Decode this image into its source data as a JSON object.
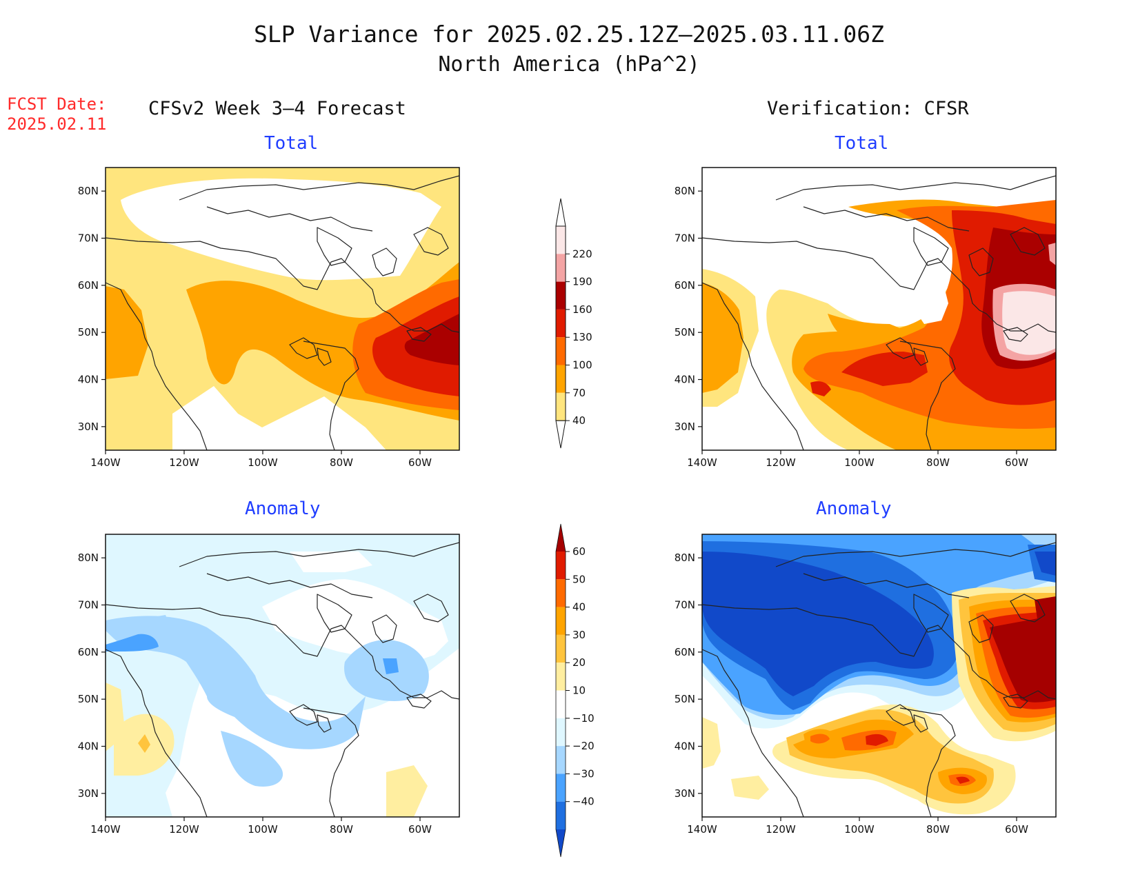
{
  "header": {
    "title": "SLP Variance for 2025.02.25.12Z–2025.03.11.06Z",
    "subtitle": "North America (hPa^2)",
    "fcst_date_label": "FCST Date:",
    "fcst_date_value": "2025.02.11",
    "left_column_title": "CFSv2 Week 3–4 Forecast",
    "right_column_title": "Verification: CFSR"
  },
  "panels": {
    "fcst_total": {
      "title": "Total"
    },
    "verif_total": {
      "title": "Total"
    },
    "fcst_anomaly": {
      "title": "Anomaly"
    },
    "verif_anomaly": {
      "title": "Anomaly"
    }
  },
  "axes": {
    "lat_labels": [
      "80N",
      "70N",
      "60N",
      "50N",
      "40N",
      "30N"
    ],
    "lon_labels": [
      "140W",
      "120W",
      "100W",
      "80W",
      "60W"
    ]
  },
  "colorbars": {
    "total": {
      "labels": [
        "220",
        "190",
        "160",
        "130",
        "100",
        "70",
        "40"
      ],
      "colors": [
        "#fbe7e7",
        "#f4a4a4",
        "#aa0000",
        "#e01b00",
        "#ff6a00",
        "#ffa400",
        "#ffe57e"
      ]
    },
    "anomaly": {
      "labels": [
        "60",
        "50",
        "40",
        "30",
        "20",
        "10",
        "−10",
        "−20",
        "−30",
        "−40"
      ],
      "colors": [
        "#a50000",
        "#e01b00",
        "#ff6a00",
        "#ffa400",
        "#ffc43d",
        "#ffeea0",
        "#ffffff",
        "#dff7ff",
        "#a6d7ff",
        "#4aa3ff",
        "#1f6fe0",
        "#1149c9"
      ]
    }
  },
  "colors": {
    "title_blue": "#1f3dff",
    "fcst_date_red": "#ff2a2a",
    "coastline": "#222222"
  }
}
